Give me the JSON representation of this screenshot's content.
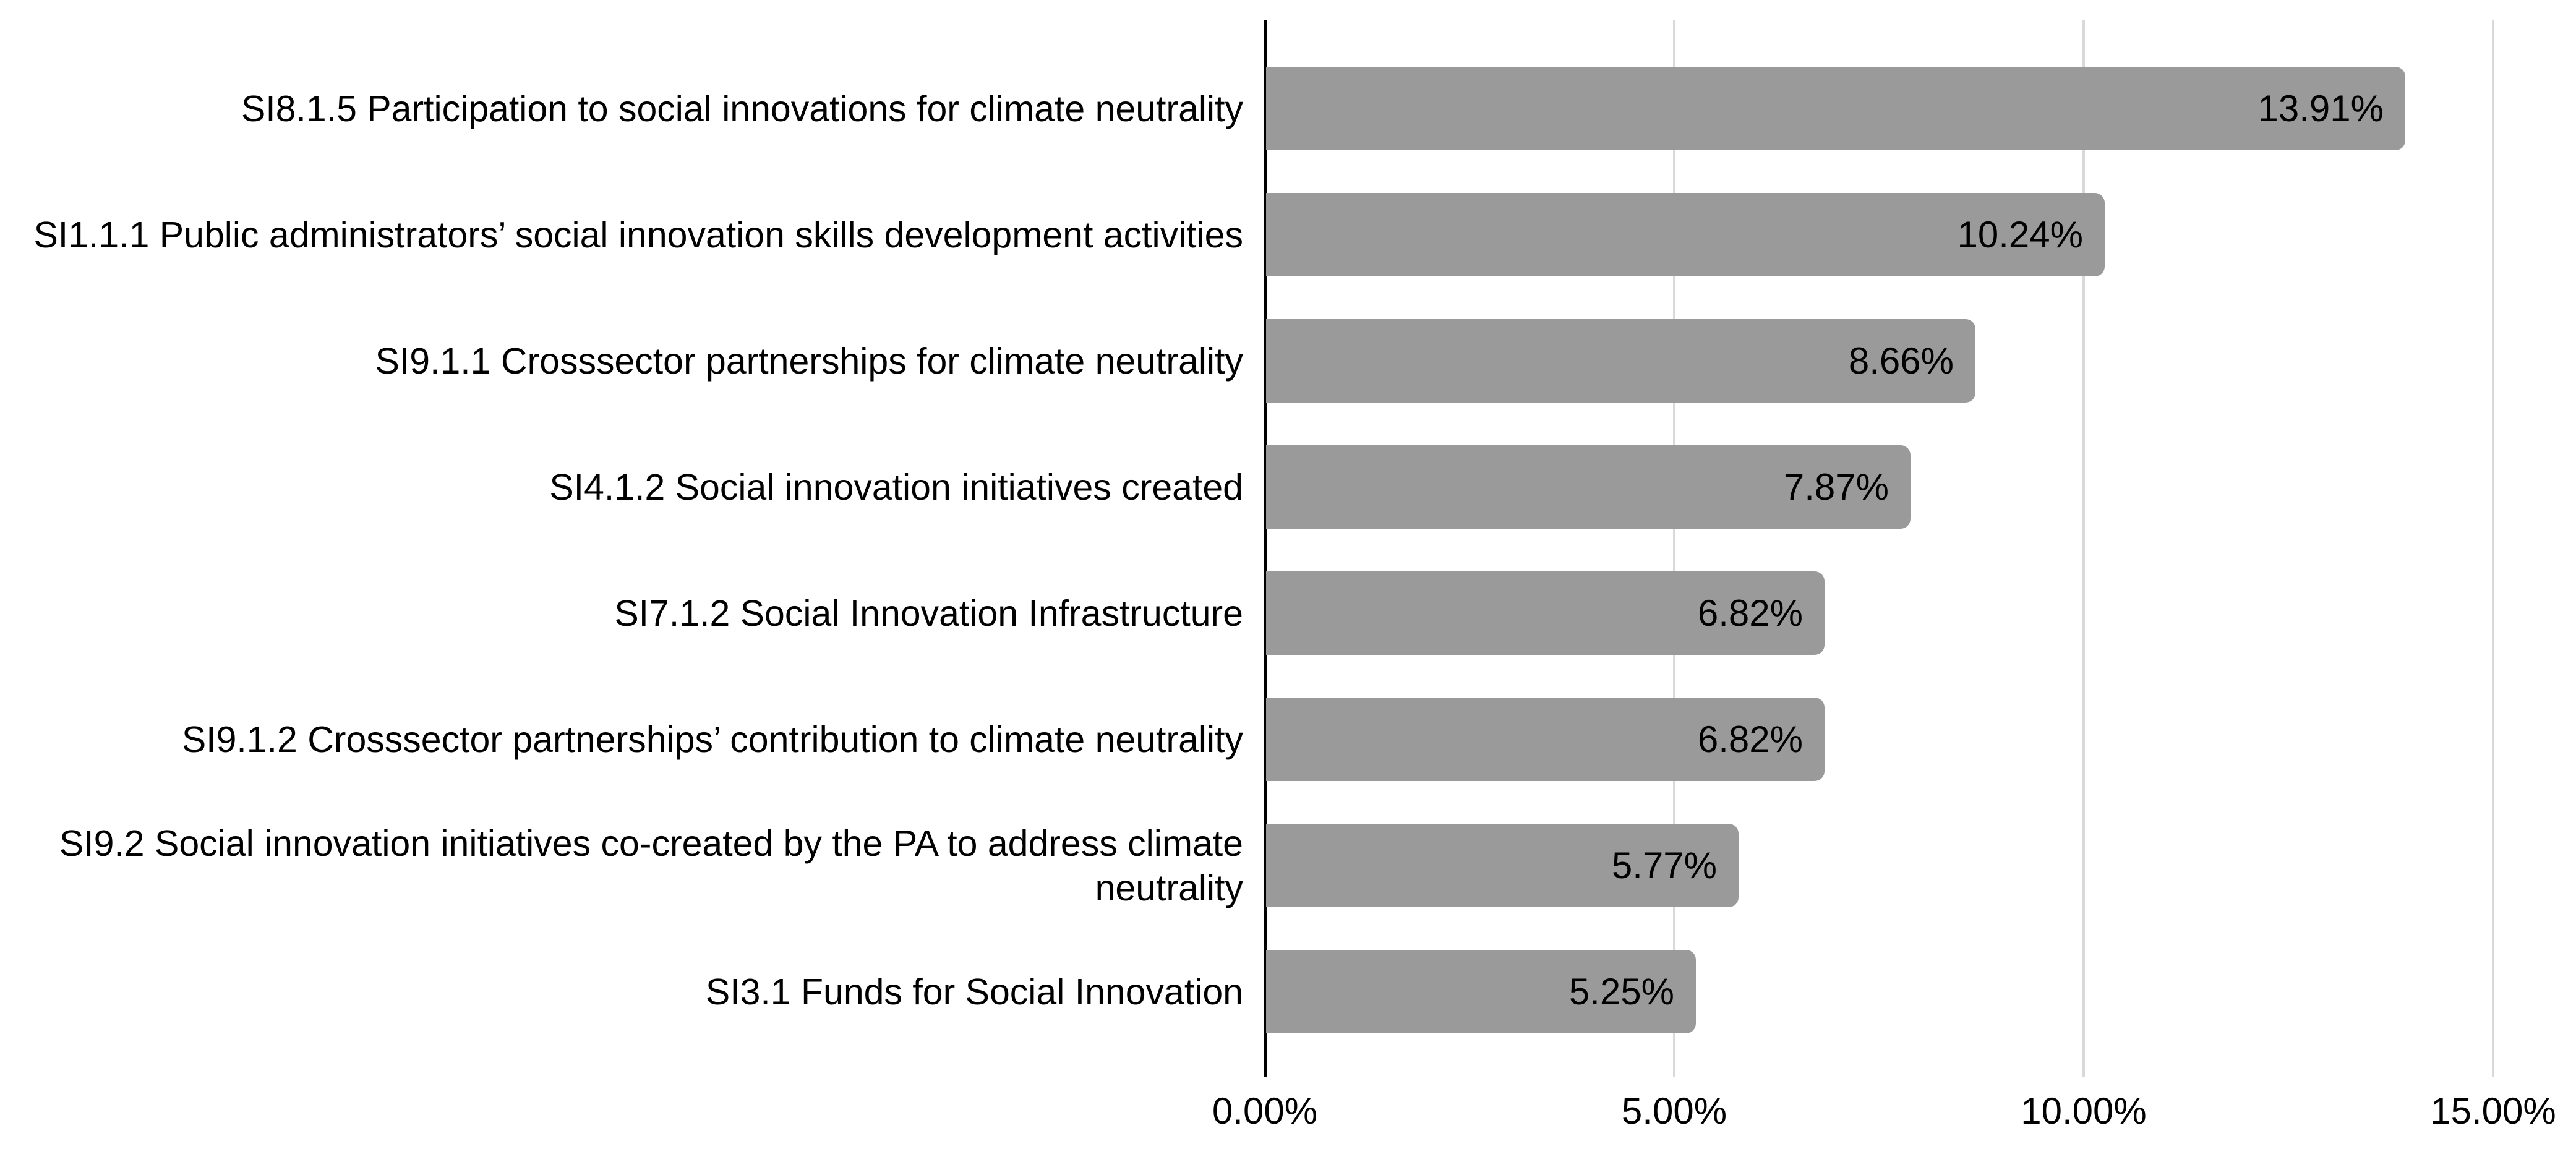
{
  "chart_data": {
    "type": "bar",
    "orientation": "horizontal",
    "title": "",
    "xlabel": "",
    "ylabel": "",
    "categories": [
      "SI8.1.5 Participation to social innovations for climate neutrality",
      "SI1.1.1 Public administrators’ social innovation skills development activities",
      "SI9.1.1 Crosssector partnerships for climate neutrality",
      "SI4.1.2 Social innovation initiatives created",
      "SI7.1.2 Social Innovation Infrastructure",
      "SI9.1.2 Crosssector partnerships’ contribution to climate neutrality",
      "SI9.2 Social innovation initiatives co-created by the PA to address climate neutrality",
      "SI3.1 Funds for Social Innovation"
    ],
    "values": [
      13.91,
      10.24,
      8.66,
      7.87,
      6.82,
      6.82,
      5.77,
      5.25
    ],
    "value_labels": [
      "13.91%",
      "10.24%",
      "8.66%",
      "7.87%",
      "6.82%",
      "6.82%",
      "5.77%",
      "5.25%"
    ],
    "xlim": [
      0,
      15
    ],
    "x_ticks": [
      {
        "value": 0,
        "label": "0.00%"
      },
      {
        "value": 5,
        "label": "5.00%"
      },
      {
        "value": 10,
        "label": "10.00%"
      },
      {
        "value": 15,
        "label": "15.00%"
      }
    ],
    "grid": true,
    "legend": false,
    "colors": {
      "bar": "#9a9a9a",
      "gridline": "#d9d9d9",
      "axis": "#000000",
      "text": "#000000",
      "background": "#ffffff"
    }
  }
}
